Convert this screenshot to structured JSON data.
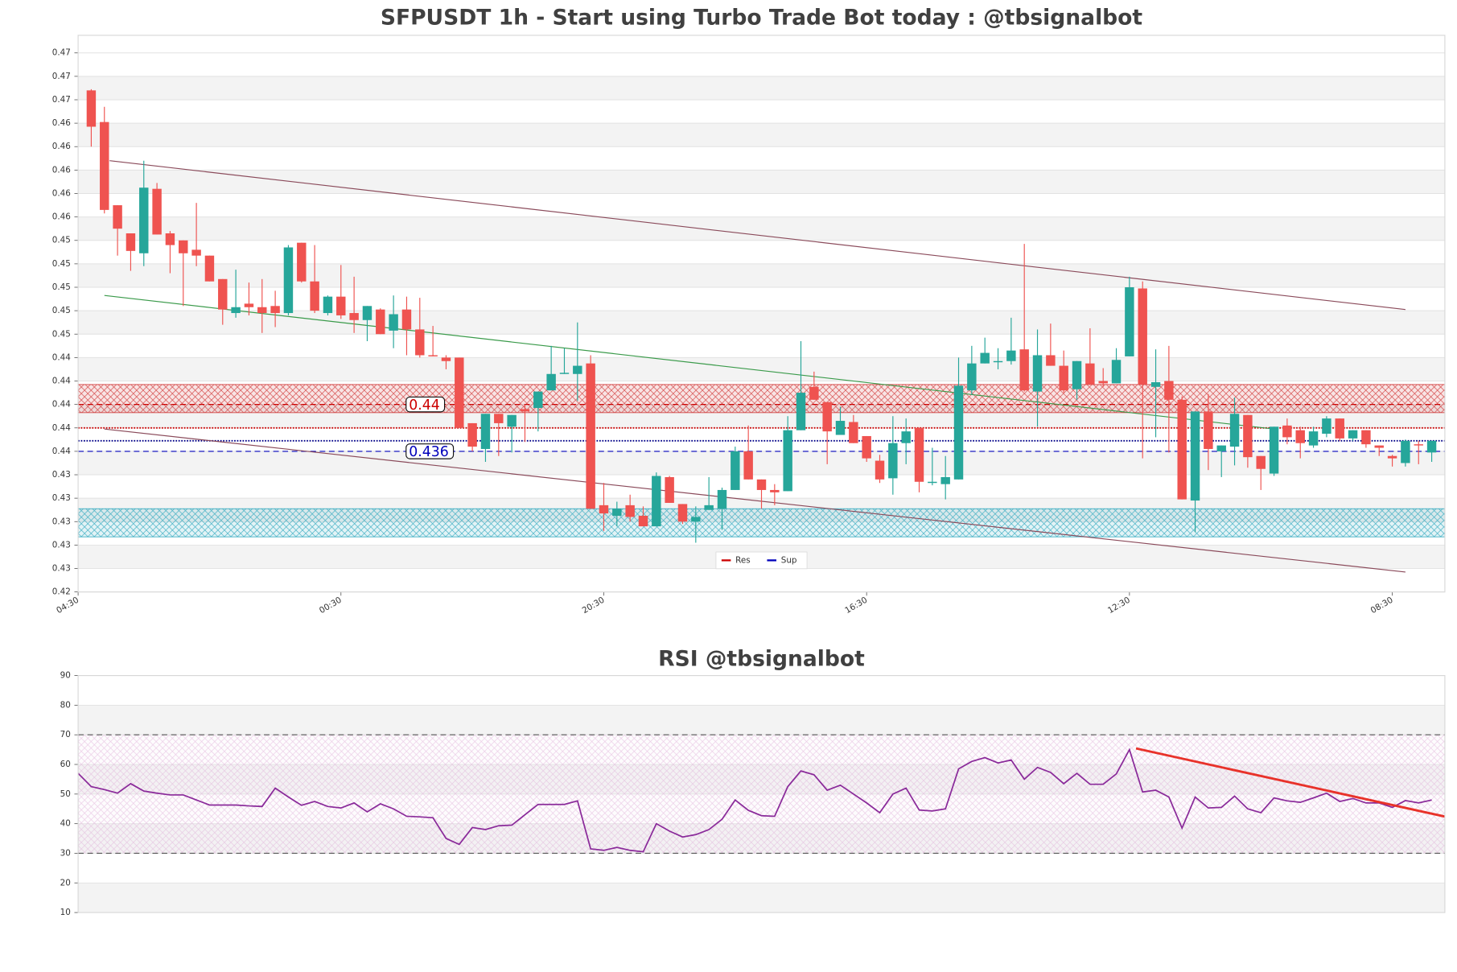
{
  "chart_data": [
    {
      "type": "candlestick",
      "title": "SFPUSDT 1h - Start using Turbo Trade Bot today : @tbsignalbot",
      "x": [
        1,
        2,
        3,
        4,
        5,
        6,
        7,
        8,
        9,
        10,
        11,
        12,
        13,
        14,
        15,
        16,
        17,
        18,
        19,
        20,
        21,
        22,
        23,
        24,
        25,
        26,
        27,
        28,
        29,
        30,
        31,
        32,
        33,
        34,
        35,
        36,
        37,
        38,
        39,
        40,
        41,
        42,
        43,
        44,
        45,
        46,
        47,
        48,
        49,
        50,
        51,
        52,
        53,
        54,
        55,
        56,
        57,
        58,
        59,
        60,
        61,
        62,
        63,
        64,
        65,
        66,
        67,
        68,
        69,
        70,
        71,
        72,
        73,
        74,
        75,
        76,
        77,
        78,
        79,
        80,
        81,
        82,
        83,
        84,
        85,
        86,
        87,
        88,
        89,
        90,
        91,
        92,
        93,
        94,
        95,
        96,
        97,
        98,
        99,
        100,
        101,
        102,
        103
      ],
      "open": [
        0.4668,
        0.4641,
        0.457,
        0.4546,
        0.4529,
        0.4584,
        0.4546,
        0.454,
        0.4532,
        0.4527,
        0.4507,
        0.4478,
        0.4486,
        0.4483,
        0.4484,
        0.4478,
        0.4538,
        0.4505,
        0.4478,
        0.4492,
        0.4478,
        0.4472,
        0.4481,
        0.4463,
        0.4481,
        0.4464,
        0.4442,
        0.444,
        0.444,
        0.4384,
        0.4362,
        0.4392,
        0.4381,
        0.4396,
        0.4397,
        0.4412,
        0.4426,
        0.4426,
        0.4435,
        0.4314,
        0.4305,
        0.4314,
        0.4305,
        0.4296,
        0.4338,
        0.4315,
        0.43,
        0.431,
        0.4311,
        0.4327,
        0.436,
        0.4336,
        0.4327,
        0.4326,
        0.4378,
        0.4415,
        0.4402,
        0.4374,
        0.4385,
        0.4373,
        0.4352,
        0.4337,
        0.4367,
        0.438,
        0.4333,
        0.4332,
        0.4336,
        0.4412,
        0.4435,
        0.4436,
        0.4437,
        0.4447,
        0.4411,
        0.4442,
        0.4433,
        0.4413,
        0.4435,
        0.442,
        0.4418,
        0.4441,
        0.4499,
        0.4415,
        0.442,
        0.4404,
        0.4318,
        0.4394,
        0.436,
        0.4364,
        0.4391,
        0.4356,
        0.4341,
        0.4382,
        0.4378,
        0.4365,
        0.4375,
        0.4388,
        0.4371,
        0.4378,
        0.4365,
        0.4356,
        0.435,
        0.4366,
        0.4359
      ],
      "high": [
        0.4669,
        0.4654,
        0.457,
        0.4546,
        0.4608,
        0.4589,
        0.4548,
        0.454,
        0.4572,
        0.4527,
        0.4507,
        0.4515,
        0.4504,
        0.4507,
        0.4497,
        0.4536,
        0.4538,
        0.4536,
        0.4493,
        0.4519,
        0.4509,
        0.4484,
        0.4482,
        0.4493,
        0.4492,
        0.4491,
        0.4467,
        0.4442,
        0.444,
        0.4384,
        0.4392,
        0.4392,
        0.4391,
        0.44,
        0.4411,
        0.445,
        0.4448,
        0.447,
        0.4442,
        0.4333,
        0.4317,
        0.4323,
        0.4313,
        0.4342,
        0.4339,
        0.4315,
        0.4313,
        0.4338,
        0.4329,
        0.4364,
        0.4382,
        0.4336,
        0.4332,
        0.439,
        0.4454,
        0.4428,
        0.4402,
        0.4398,
        0.4391,
        0.4373,
        0.4357,
        0.439,
        0.4388,
        0.438,
        0.4363,
        0.4356,
        0.444,
        0.445,
        0.4457,
        0.4448,
        0.4474,
        0.4537,
        0.4464,
        0.4469,
        0.4446,
        0.4437,
        0.4465,
        0.4431,
        0.4448,
        0.4509,
        0.4505,
        0.4447,
        0.445,
        0.4407,
        0.4394,
        0.4409,
        0.4365,
        0.4406,
        0.4391,
        0.4356,
        0.4381,
        0.4388,
        0.4381,
        0.4381,
        0.439,
        0.4388,
        0.4378,
        0.4378,
        0.4365,
        0.4357,
        0.437,
        0.4369,
        0.4369
      ],
      "low": [
        0.462,
        0.4563,
        0.4527,
        0.4514,
        0.4518,
        0.4545,
        0.4512,
        0.4484,
        0.4518,
        0.4505,
        0.4468,
        0.4474,
        0.4476,
        0.4461,
        0.4466,
        0.4476,
        0.4504,
        0.4478,
        0.4476,
        0.4473,
        0.4461,
        0.4454,
        0.446,
        0.4448,
        0.4442,
        0.444,
        0.4441,
        0.443,
        0.438,
        0.436,
        0.4351,
        0.4356,
        0.4359,
        0.4368,
        0.4377,
        0.4412,
        0.4426,
        0.4403,
        0.4311,
        0.4292,
        0.4296,
        0.43,
        0.4296,
        0.4296,
        0.4316,
        0.4298,
        0.4282,
        0.431,
        0.4293,
        0.4327,
        0.4336,
        0.4311,
        0.4314,
        0.4326,
        0.4378,
        0.4404,
        0.4349,
        0.4374,
        0.4367,
        0.4351,
        0.4333,
        0.4323,
        0.4349,
        0.4325,
        0.4331,
        0.4319,
        0.4336,
        0.4408,
        0.4435,
        0.443,
        0.4434,
        0.4411,
        0.4381,
        0.4433,
        0.441,
        0.4404,
        0.4417,
        0.4415,
        0.4418,
        0.4441,
        0.4354,
        0.4372,
        0.4359,
        0.4319,
        0.4291,
        0.4344,
        0.4338,
        0.4348,
        0.4346,
        0.4327,
        0.4339,
        0.4366,
        0.4354,
        0.4363,
        0.4372,
        0.4369,
        0.4369,
        0.4363,
        0.4356,
        0.4347,
        0.4347,
        0.4349,
        0.4351
      ],
      "close": [
        0.4637,
        0.4566,
        0.455,
        0.4531,
        0.4585,
        0.4545,
        0.4536,
        0.4529,
        0.4527,
        0.4505,
        0.4481,
        0.4483,
        0.4483,
        0.4478,
        0.4478,
        0.4534,
        0.4505,
        0.448,
        0.4492,
        0.4476,
        0.4472,
        0.4484,
        0.446,
        0.4477,
        0.4464,
        0.4442,
        0.4441,
        0.4437,
        0.438,
        0.4364,
        0.4392,
        0.4384,
        0.4391,
        0.4394,
        0.4411,
        0.4426,
        0.4427,
        0.4433,
        0.4311,
        0.4307,
        0.4311,
        0.4304,
        0.4296,
        0.4339,
        0.4316,
        0.43,
        0.4304,
        0.4314,
        0.4327,
        0.436,
        0.4336,
        0.4327,
        0.4325,
        0.4378,
        0.441,
        0.4404,
        0.4377,
        0.4386,
        0.4367,
        0.4354,
        0.4336,
        0.4367,
        0.4377,
        0.4334,
        0.4334,
        0.4338,
        0.4416,
        0.4435,
        0.4444,
        0.4437,
        0.4446,
        0.4412,
        0.4442,
        0.4433,
        0.4412,
        0.4437,
        0.4417,
        0.4418,
        0.4438,
        0.45,
        0.4417,
        0.4419,
        0.4404,
        0.4319,
        0.4394,
        0.4362,
        0.4365,
        0.4392,
        0.4355,
        0.4345,
        0.4381,
        0.4372,
        0.4367,
        0.4377,
        0.4388,
        0.4371,
        0.4378,
        0.4366,
        0.4363,
        0.4354,
        0.4369,
        0.4365,
        0.4369
      ],
      "up_color": "#26a69a",
      "down_color": "#ef5350",
      "xlim": [
        0,
        104
      ],
      "ylim": [
        0.424,
        0.4715
      ],
      "xticks": [
        {
          "value": 0,
          "label": "04:30"
        },
        {
          "value": 20,
          "label": "00:30"
        },
        {
          "value": 40,
          "label": "20:30"
        },
        {
          "value": 60,
          "label": "16:30"
        },
        {
          "value": 80,
          "label": "12:30"
        },
        {
          "value": 100,
          "label": "08:30"
        }
      ],
      "yticks": [
        {
          "value": 0.424,
          "label": "0.42"
        },
        {
          "value": 0.426,
          "label": "0.43"
        },
        {
          "value": 0.428,
          "label": "0.43"
        },
        {
          "value": 0.43,
          "label": "0.43"
        },
        {
          "value": 0.432,
          "label": "0.43"
        },
        {
          "value": 0.434,
          "label": "0.43"
        },
        {
          "value": 0.436,
          "label": "0.44"
        },
        {
          "value": 0.438,
          "label": "0.44"
        },
        {
          "value": 0.44,
          "label": "0.44"
        },
        {
          "value": 0.442,
          "label": "0.44"
        },
        {
          "value": 0.444,
          "label": "0.44"
        },
        {
          "value": 0.446,
          "label": "0.45"
        },
        {
          "value": 0.448,
          "label": "0.45"
        },
        {
          "value": 0.45,
          "label": "0.45"
        },
        {
          "value": 0.452,
          "label": "0.45"
        },
        {
          "value": 0.454,
          "label": "0.45"
        },
        {
          "value": 0.456,
          "label": "0.46"
        },
        {
          "value": 0.458,
          "label": "0.46"
        },
        {
          "value": 0.46,
          "label": "0.46"
        },
        {
          "value": 0.462,
          "label": "0.46"
        },
        {
          "value": 0.464,
          "label": "0.46"
        },
        {
          "value": 0.466,
          "label": "0.47"
        },
        {
          "value": 0.468,
          "label": "0.47"
        },
        {
          "value": 0.47,
          "label": "0.47"
        }
      ],
      "grid": true,
      "zones": [
        {
          "range": [
            0.4393,
            0.4417
          ],
          "color": "#cc2222"
        },
        {
          "range": [
            0.4287,
            0.4311
          ],
          "color": "#1aa0b8"
        }
      ],
      "levels": [
        {
          "name": "Res",
          "value": 0.44,
          "label": "0.44",
          "color": "#cc0000"
        },
        {
          "name": "Sup",
          "value": 0.436,
          "label": "0.436",
          "color": "#0000bb"
        }
      ],
      "dotted_lines": [
        {
          "value": 0.438,
          "color": "#cc0000"
        },
        {
          "value": 0.4369,
          "color": "#000088"
        }
      ],
      "trend_lines": [
        {
          "x": [
            2.4,
            101
          ],
          "y": [
            0.4608,
            0.4481
          ],
          "color": "#8a4a5a"
        },
        {
          "x": [
            2,
            101
          ],
          "y": [
            0.4379,
            0.4257
          ],
          "color": "#8a4a5a"
        },
        {
          "x": [
            2,
            91
          ],
          "y": [
            0.4493,
            0.4379
          ],
          "color": "#3a9a4a"
        }
      ],
      "legend": "lower center"
    },
    {
      "type": "line",
      "title": "RSI @tbsignalbot",
      "x": [
        0,
        1,
        2,
        3,
        4,
        5,
        6,
        7,
        8,
        9,
        10,
        11,
        12,
        13,
        14,
        15,
        16,
        17,
        18,
        19,
        20,
        21,
        22,
        23,
        24,
        25,
        26,
        27,
        28,
        29,
        30,
        31,
        32,
        33,
        34,
        35,
        36,
        37,
        38,
        39,
        40,
        41,
        42,
        43,
        44,
        45,
        46,
        47,
        48,
        49,
        50,
        51,
        52,
        53,
        54,
        55,
        56,
        57,
        58,
        59,
        60,
        61,
        62,
        63,
        64,
        65,
        66,
        67,
        68,
        69,
        70,
        71,
        72,
        73,
        74,
        75,
        76,
        77,
        78,
        79,
        80,
        81,
        82,
        83,
        84,
        85,
        86,
        87,
        88,
        89,
        90,
        91,
        92,
        93,
        94,
        95,
        96,
        97,
        98,
        99,
        100,
        101,
        102,
        103
      ],
      "values": [
        57,
        52.5,
        51.5,
        50.3,
        53.5,
        51,
        50.3,
        49.7,
        49.7,
        48,
        46.3,
        46.3,
        46.3,
        46,
        45.8,
        52,
        49,
        46.2,
        47.5,
        45.8,
        45.3,
        47,
        44,
        46.7,
        45,
        42.5,
        42.3,
        42,
        35,
        33,
        38.7,
        38,
        39.3,
        39.5,
        43,
        46.5,
        46.5,
        46.5,
        47.7,
        31.5,
        31,
        32,
        31,
        30.5,
        40,
        37.5,
        35.5,
        36.3,
        38,
        41.5,
        48,
        44.5,
        42.7,
        42.5,
        52.5,
        57.8,
        56.5,
        51.3,
        53,
        50,
        47,
        43.7,
        50,
        52,
        44.6,
        44.3,
        45,
        58.5,
        61,
        62.3,
        60.5,
        61.5,
        55,
        59,
        57.3,
        53.5,
        57,
        53.3,
        53.3,
        56.8,
        65,
        50.7,
        51.3,
        49,
        38.5,
        49,
        45.3,
        45.5,
        49.3,
        45,
        43.7,
        48.7,
        47.7,
        47.2,
        48.7,
        50.3,
        47.5,
        48.5,
        47,
        47,
        45.5,
        47.8,
        47,
        48
      ],
      "color": "#8a2a9a",
      "xlim": [
        0,
        104
      ],
      "ylim": [
        10,
        90
      ],
      "yticks": [
        10,
        20,
        30,
        40,
        50,
        60,
        70,
        80,
        90
      ],
      "grid": true,
      "overbought": 70,
      "oversold": 30,
      "trend_lines": [
        {
          "x": [
            80.5,
            104
          ],
          "y": [
            65.4,
            42.4
          ],
          "color": "#e8322a"
        }
      ]
    }
  ]
}
